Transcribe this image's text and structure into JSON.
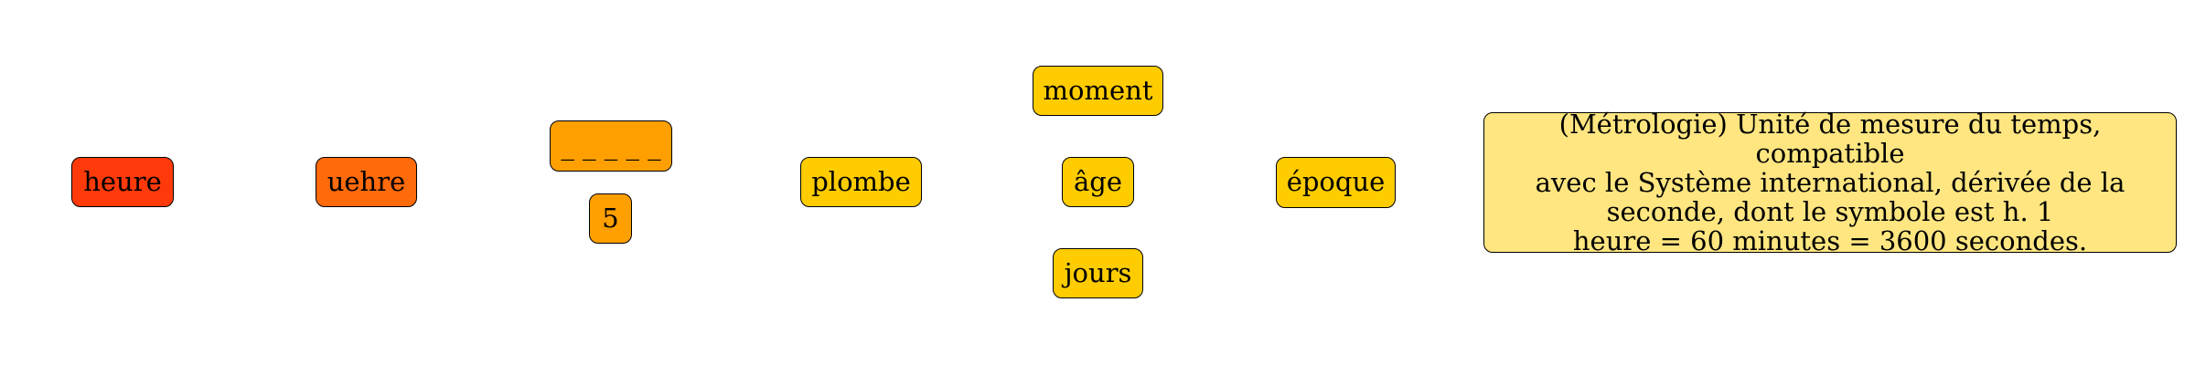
{
  "nodes": {
    "heure": {
      "label": "heure",
      "color": "#ff3a0a"
    },
    "uehre": {
      "label": "uehre",
      "color": "#ff6a0a"
    },
    "blanks": {
      "label": "_ _ _ _ _",
      "color": "#ff9f00"
    },
    "five": {
      "label": "5",
      "color": "#ff9f00"
    },
    "plombe": {
      "label": "plombe",
      "color": "#ffcc00"
    },
    "moment": {
      "label": "moment",
      "color": "#ffcc00"
    },
    "age": {
      "label": "âge",
      "color": "#ffcc00"
    },
    "jours": {
      "label": "jours",
      "color": "#ffcc00"
    },
    "epoque": {
      "label": "époque",
      "color": "#ffcc00"
    }
  },
  "definition": {
    "lines": [
      "(Métrologie) Unité de mesure du temps, compatible",
      "avec le Système international, dérivée de la",
      "seconde, dont le symbole est h. 1",
      "heure = 60 minutes = 3600 secondes."
    ],
    "color": "#ffe680"
  }
}
